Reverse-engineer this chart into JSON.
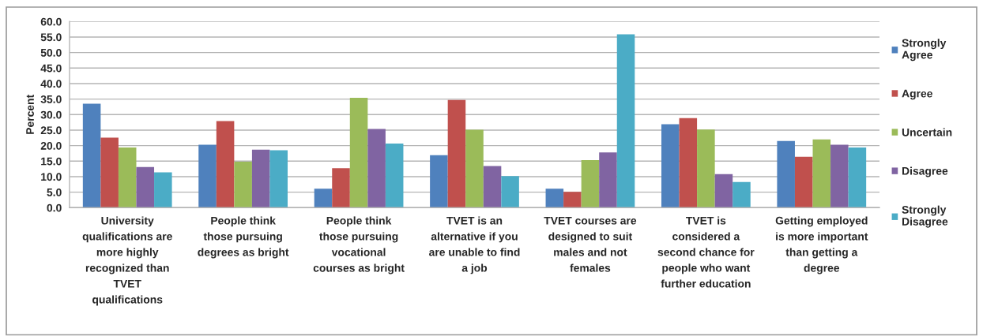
{
  "chart_data": {
    "type": "bar",
    "categories": [
      "University\nqualifications are\nmore highly\nrecognized than\nTVET\nqualifications",
      "People think\nthose pursuing\ndegrees as bright",
      "People think\nthose pursuing\nvocational\ncourses as bright",
      "TVET is an\nalternative if you\nare unable to find\na job",
      "TVET courses are\ndesigned to suit\nmales and not\nfemales",
      "TVET is\nconsidered a\nsecond chance for\npeople who want\nfurther education",
      "Getting employed\nis more important\nthan getting a\ndegree"
    ],
    "series": [
      {
        "name": "Strongly\nAgree",
        "color": "#4f81bd",
        "values": [
          33.5,
          20.3,
          6.1,
          16.9,
          6.1,
          26.9,
          21.5
        ]
      },
      {
        "name": "Agree",
        "color": "#c0504d",
        "values": [
          22.6,
          27.9,
          12.7,
          34.7,
          5.1,
          28.9,
          16.4
        ]
      },
      {
        "name": "Uncertain",
        "color": "#9bbb59",
        "values": [
          19.4,
          14.8,
          35.4,
          25.1,
          15.3,
          25.2,
          22.0
        ]
      },
      {
        "name": "Disagree",
        "color": "#8064a2",
        "values": [
          13.1,
          18.7,
          25.4,
          13.4,
          17.8,
          10.8,
          20.3
        ]
      },
      {
        "name": "Strongly\nDisagree",
        "color": "#4bacc6",
        "values": [
          11.4,
          18.5,
          20.7,
          10.2,
          55.9,
          8.3,
          19.4
        ]
      }
    ],
    "ylabel": "Percent",
    "ylim": [
      0,
      60
    ],
    "yticks": [
      {
        "value": 0,
        "label": "0.0"
      },
      {
        "value": 5,
        "label": "5.0"
      },
      {
        "value": 10,
        "label": "10.0"
      },
      {
        "value": 15,
        "label": "15.0"
      },
      {
        "value": 20,
        "label": "20.0"
      },
      {
        "value": 25,
        "label": "25.0"
      },
      {
        "value": 30,
        "label": "30.0"
      },
      {
        "value": 35,
        "label": "35.0"
      },
      {
        "value": 40,
        "label": "40.0"
      },
      {
        "value": 45,
        "label": "45.0"
      },
      {
        "value": 50,
        "label": "50.0"
      },
      {
        "value": 55,
        "label": "55.0"
      },
      {
        "value": 60,
        "label": "60.0"
      }
    ],
    "grid": "y",
    "legend": "right"
  }
}
